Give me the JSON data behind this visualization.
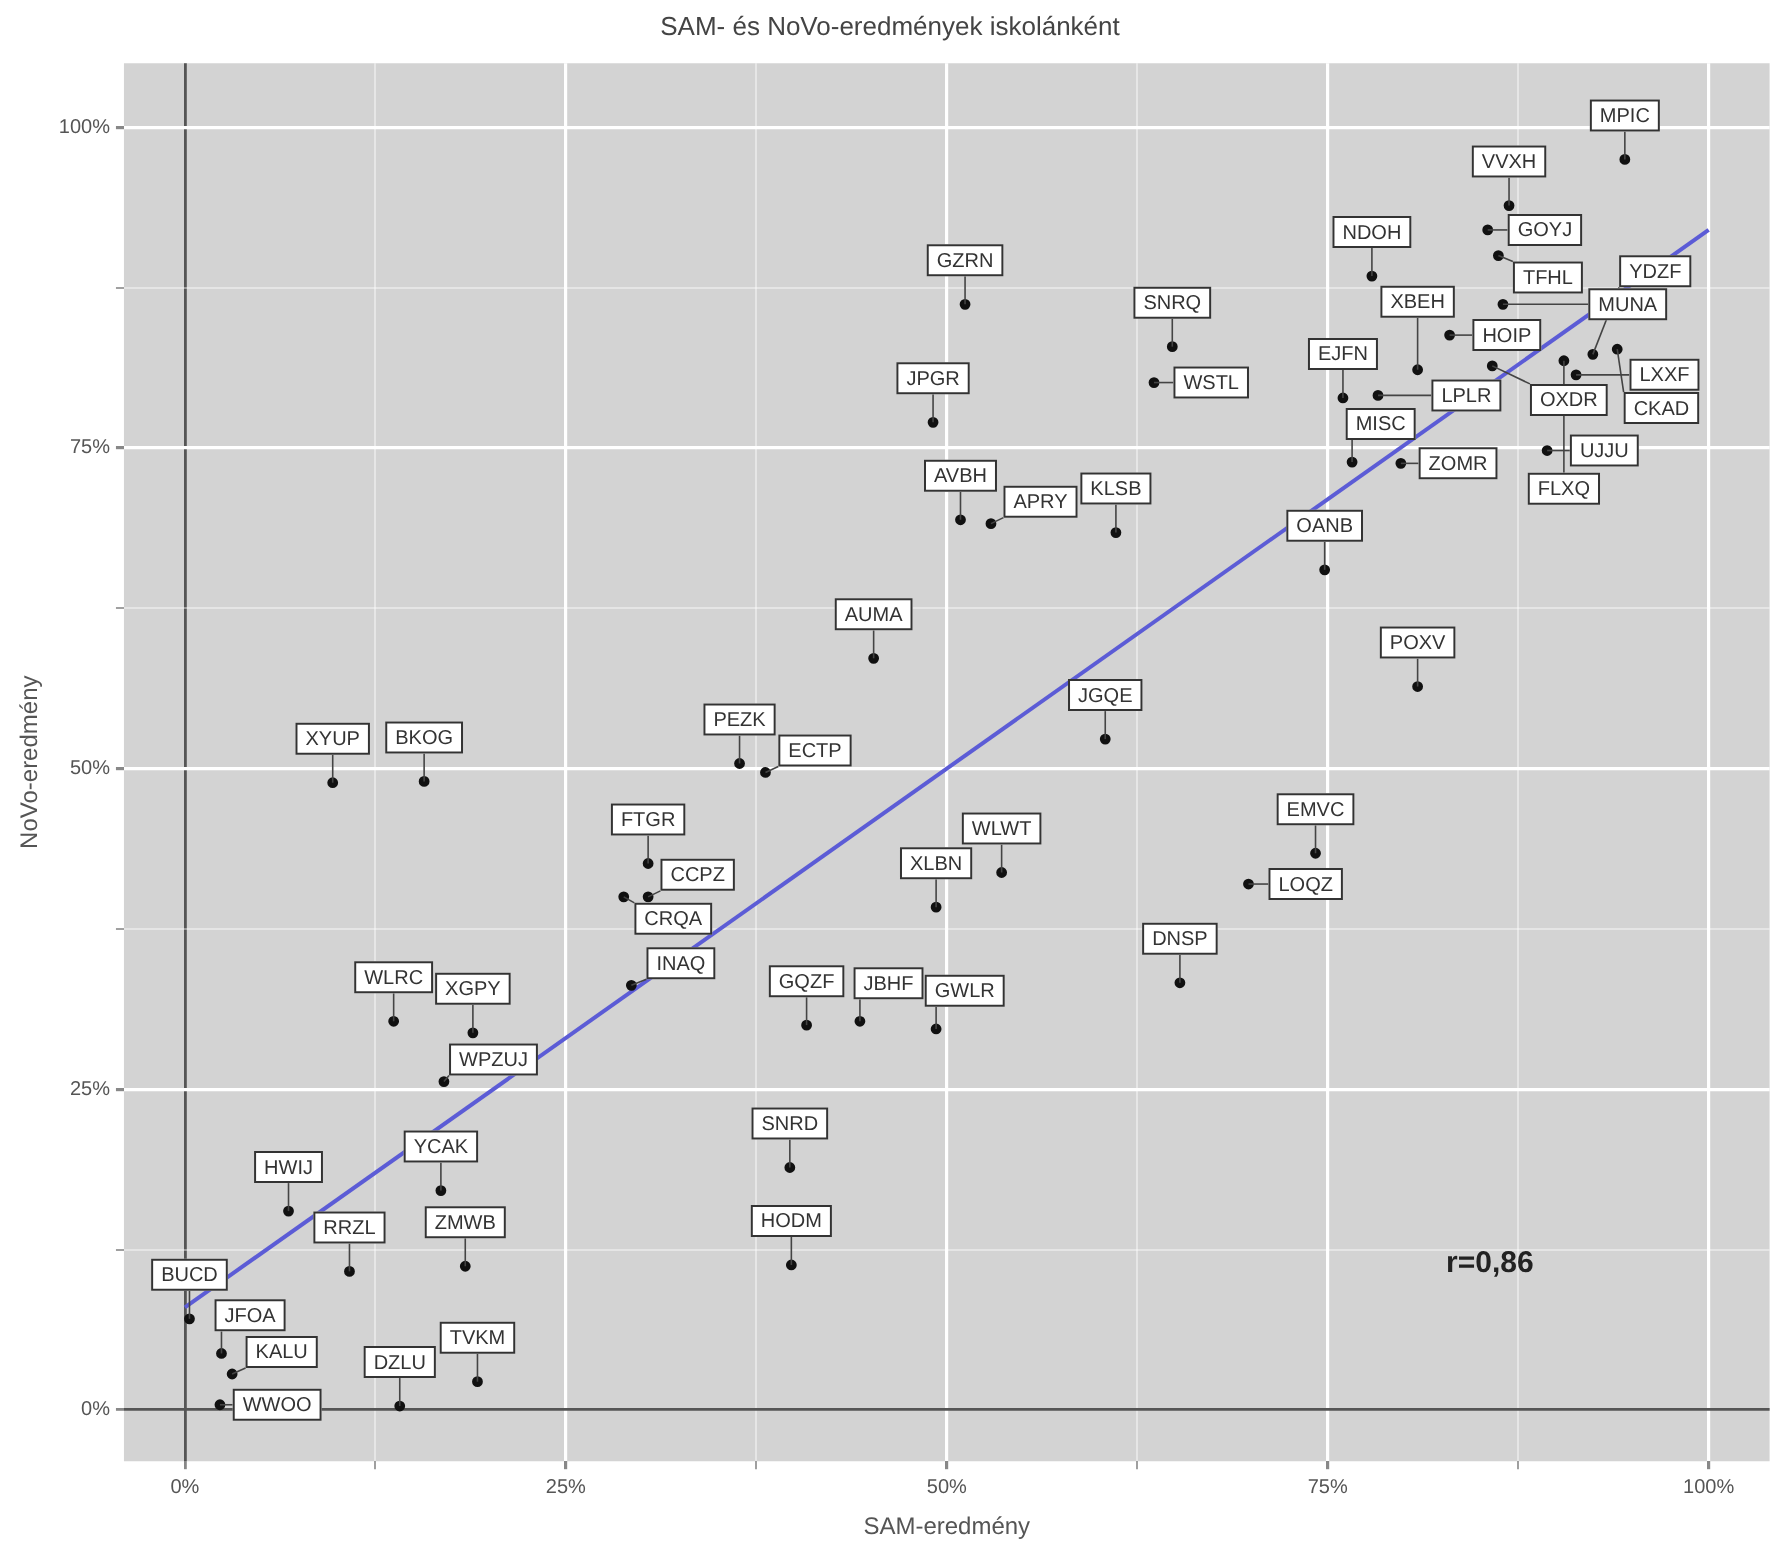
{
  "chart_data": {
    "type": "scatter",
    "title": "SAM- és NoVo-eredmények iskolánként",
    "xlabel": "SAM-eredmény",
    "ylabel": "NoVo-eredmény",
    "xlim": [
      -4,
      104
    ],
    "ylim": [
      -4,
      105
    ],
    "xticks": [
      {
        "value": 0,
        "label": "0%"
      },
      {
        "value": 12.5,
        "label": null
      },
      {
        "value": 25,
        "label": "25%"
      },
      {
        "value": 37.5,
        "label": null
      },
      {
        "value": 50,
        "label": "50%"
      },
      {
        "value": 62.5,
        "label": null
      },
      {
        "value": 75,
        "label": "75%"
      },
      {
        "value": 87.5,
        "label": null
      },
      {
        "value": 100,
        "label": "100%"
      }
    ],
    "yticks": [
      {
        "value": 0,
        "label": "0%"
      },
      {
        "value": 12.5,
        "label": null
      },
      {
        "value": 25,
        "label": "25%"
      },
      {
        "value": 37.5,
        "label": null
      },
      {
        "value": 50,
        "label": "50%"
      },
      {
        "value": 62.5,
        "label": null
      },
      {
        "value": 75,
        "label": "75%"
      },
      {
        "value": 87.5,
        "label": null
      },
      {
        "value": 100,
        "label": "100%"
      }
    ],
    "grid": true,
    "legend": false,
    "series": [
      {
        "type": "scatter",
        "color": "#111111",
        "marker": "circle",
        "x": [
          9.7,
          15.7,
          36.4,
          38.1,
          45.2,
          30.4,
          28.8,
          30.4,
          29.3,
          13.7,
          18.9,
          17.0,
          16.8,
          6.8,
          0.3,
          2.4,
          3.1,
          2.3,
          14.1,
          10.8,
          18.4,
          19.2,
          39.7,
          39.8,
          40.8,
          44.3,
          49.3,
          49.3,
          53.6,
          60.4,
          74.2,
          69.8,
          65.3,
          51.2,
          49.1,
          50.9,
          52.9,
          63.6,
          64.8,
          61.1,
          76.6,
          79.8,
          74.8,
          80.9,
          76.0,
          78.3,
          80.9,
          77.9,
          83.0,
          85.5,
          86.9,
          86.2,
          86.5,
          85.8,
          94.5,
          89.4,
          91.3,
          94.0,
          92.4,
          90.5
        ],
        "values": [
          48.9,
          49.0,
          50.4,
          49.7,
          58.6,
          42.6,
          40.0,
          40.0,
          33.1,
          30.3,
          29.4,
          25.6,
          17.1,
          15.5,
          7.1,
          4.4,
          2.8,
          0.4,
          0.3,
          10.8,
          11.2,
          2.2,
          18.9,
          11.3,
          30.0,
          30.3,
          29.7,
          39.2,
          41.9,
          52.3,
          43.4,
          41.0,
          33.3,
          86.2,
          77.0,
          69.4,
          69.1,
          80.1,
          82.9,
          68.4,
          73.9,
          73.8,
          65.5,
          56.4,
          78.9,
          79.1,
          81.1,
          88.4,
          83.8,
          92.0,
          93.9,
          90.0,
          86.2,
          81.4,
          97.5,
          74.8,
          80.7,
          82.7,
          82.3,
          81.8
        ]
      },
      {
        "type": "line",
        "color": "#5c5cd6",
        "marker": "none",
        "x": [
          0,
          100
        ],
        "values": [
          8,
          92
        ]
      }
    ],
    "annotations": [
      {
        "text": "XYUP",
        "x": 9.7,
        "y": 48.9
      },
      {
        "text": "BKOG",
        "x": 15.7,
        "y": 49.0
      },
      {
        "text": "PEZK",
        "x": 36.4,
        "y": 50.4
      },
      {
        "text": "ECTP",
        "x": 38.1,
        "y": 49.7
      },
      {
        "text": "AUMA",
        "x": 45.2,
        "y": 58.6
      },
      {
        "text": "FTGR",
        "x": 30.4,
        "y": 42.6
      },
      {
        "text": "CRQA",
        "x": 28.8,
        "y": 40.0
      },
      {
        "text": "CCPZ",
        "x": 30.4,
        "y": 40.0
      },
      {
        "text": "INAQ",
        "x": 29.3,
        "y": 33.1
      },
      {
        "text": "WLRC",
        "x": 13.7,
        "y": 30.3
      },
      {
        "text": "XGPY",
        "x": 18.9,
        "y": 29.4
      },
      {
        "text": "WPZUJ",
        "x": 17.0,
        "y": 25.6
      },
      {
        "text": "YCAK",
        "x": 16.8,
        "y": 17.1
      },
      {
        "text": "HWIJ",
        "x": 6.8,
        "y": 15.5
      },
      {
        "text": "BUCD",
        "x": 0.3,
        "y": 7.1
      },
      {
        "text": "JFOA",
        "x": 2.4,
        "y": 4.4
      },
      {
        "text": "KALU",
        "x": 3.1,
        "y": 2.8
      },
      {
        "text": "WWOO",
        "x": 2.3,
        "y": 0.4
      },
      {
        "text": "DZLU",
        "x": 14.1,
        "y": 0.3
      },
      {
        "text": "RRZL",
        "x": 10.8,
        "y": 10.8
      },
      {
        "text": "ZMWB",
        "x": 18.4,
        "y": 11.2
      },
      {
        "text": "TVKM",
        "x": 19.2,
        "y": 2.2
      },
      {
        "text": "SNRD",
        "x": 39.7,
        "y": 18.9
      },
      {
        "text": "HODM",
        "x": 39.8,
        "y": 11.3
      },
      {
        "text": "GQZF",
        "x": 40.8,
        "y": 30.0
      },
      {
        "text": "JBHF",
        "x": 44.3,
        "y": 30.3
      },
      {
        "text": "GWLR",
        "x": 49.3,
        "y": 29.7
      },
      {
        "text": "XLBN",
        "x": 49.3,
        "y": 39.2
      },
      {
        "text": "WLWT",
        "x": 53.6,
        "y": 41.9
      },
      {
        "text": "JGQE",
        "x": 60.4,
        "y": 52.3
      },
      {
        "text": "EMVC",
        "x": 74.2,
        "y": 43.4
      },
      {
        "text": "LOQZ",
        "x": 69.8,
        "y": 41.0
      },
      {
        "text": "DNSP",
        "x": 65.3,
        "y": 33.3
      },
      {
        "text": "GZRN",
        "x": 51.2,
        "y": 86.2
      },
      {
        "text": "JPGR",
        "x": 49.1,
        "y": 77.0
      },
      {
        "text": "AVBH",
        "x": 50.9,
        "y": 69.4
      },
      {
        "text": "APRY",
        "x": 52.9,
        "y": 69.1
      },
      {
        "text": "WSTL",
        "x": 63.6,
        "y": 80.1
      },
      {
        "text": "SNRQ",
        "x": 64.8,
        "y": 82.9
      },
      {
        "text": "KLSB",
        "x": 61.1,
        "y": 68.4
      },
      {
        "text": "MISC",
        "x": 76.6,
        "y": 73.9
      },
      {
        "text": "ZOMR",
        "x": 79.8,
        "y": 73.8
      },
      {
        "text": "OANB",
        "x": 74.8,
        "y": 65.5
      },
      {
        "text": "POXV",
        "x": 80.9,
        "y": 56.4
      },
      {
        "text": "EJFN",
        "x": 76.0,
        "y": 78.9
      },
      {
        "text": "LPLR",
        "x": 78.3,
        "y": 79.1
      },
      {
        "text": "XBEH",
        "x": 80.9,
        "y": 81.1
      },
      {
        "text": "NDOH",
        "x": 77.9,
        "y": 88.4
      },
      {
        "text": "HOIP",
        "x": 83.0,
        "y": 83.8
      },
      {
        "text": "GOYJ",
        "x": 85.5,
        "y": 92.0
      },
      {
        "text": "VVXH",
        "x": 86.9,
        "y": 93.9
      },
      {
        "text": "TFHL",
        "x": 86.2,
        "y": 90.0
      },
      {
        "text": "MUNA",
        "x": 86.5,
        "y": 86.2
      },
      {
        "text": "OXDR",
        "x": 85.8,
        "y": 81.4
      },
      {
        "text": "MPIC",
        "x": 94.5,
        "y": 97.5
      },
      {
        "text": "UJJU",
        "x": 89.4,
        "y": 74.8
      },
      {
        "text": "LXXF",
        "x": 91.3,
        "y": 80.7
      },
      {
        "text": "CKAD",
        "x": 94.0,
        "y": 82.7
      },
      {
        "text": "YDZF",
        "x": 92.4,
        "y": 82.3
      },
      {
        "text": "FLXQ",
        "x": 90.5,
        "y": 81.8
      },
      "r=0,86"
    ]
  }
}
